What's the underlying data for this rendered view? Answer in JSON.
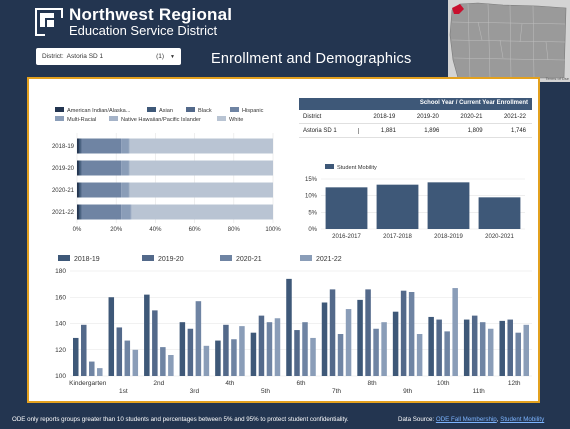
{
  "brand": {
    "line1": "Northwest Regional",
    "line2": "Education Service District"
  },
  "district_filter": {
    "label": "District:",
    "value": "Astoria SD 1",
    "count": "(1)"
  },
  "page_title": "Enrollment and Demographics",
  "map": {
    "terms": "Terms of Use"
  },
  "enrollment_table": {
    "title": "School Year / Current Year Enrollment",
    "columns": [
      "District",
      "2018-19",
      "2019-20",
      "2020-21",
      "2021-22"
    ],
    "rows": [
      [
        "Astoria SD 1",
        "1,881",
        "1,896",
        "1,809",
        "1,746"
      ]
    ]
  },
  "colors": {
    "header": "#3e5878",
    "accent": "#e3a11f",
    "background": "#233550"
  },
  "footer": {
    "note": "ODE only reports groups greater than 10 students and percentages between 5% and 95% to protect student confidentiality.",
    "source_label": "Data Source:",
    "source_link1": "ODE Fall Membership",
    "sep": ",",
    "source_link2": "Student Mobility"
  },
  "chart_data": [
    {
      "type": "bar",
      "orientation": "horizontal",
      "stacked": true,
      "title": "",
      "categories": [
        "2018-19",
        "2019-20",
        "2020-21",
        "2021-22"
      ],
      "series": [
        {
          "name": "American Indian/Alaska...",
          "color": "#233550",
          "values": [
            1,
            1,
            1,
            1
          ]
        },
        {
          "name": "Asian",
          "color": "#3e5878",
          "values": [
            1,
            1,
            1,
            1
          ]
        },
        {
          "name": "Black",
          "color": "#53698a",
          "values": [
            0.5,
            0.5,
            0.5,
            0.5
          ]
        },
        {
          "name": "Hispanic",
          "color": "#6f84a3",
          "values": [
            20,
            20,
            20,
            20
          ]
        },
        {
          "name": "Multi-Racial",
          "color": "#8a9db8",
          "values": [
            4,
            4,
            4,
            5
          ]
        },
        {
          "name": "Native Hawaiian/Pacific Islander",
          "color": "#a5b3c8",
          "values": [
            0.5,
            0.5,
            0.5,
            0.5
          ]
        },
        {
          "name": "White",
          "color": "#b9c4d3",
          "values": [
            73,
            73,
            73,
            72
          ]
        }
      ],
      "x_ticks": [
        "0%",
        "20%",
        "40%",
        "60%",
        "80%",
        "100%"
      ],
      "xlim": [
        0,
        100
      ],
      "legend": "top"
    },
    {
      "type": "bar",
      "title": "",
      "categories": [
        "2016-2017",
        "2017-2018",
        "2018-2019",
        "2020-2021"
      ],
      "series": [
        {
          "name": "Student Mobility",
          "color": "#3e5878",
          "values": [
            12.5,
            13.3,
            14,
            9.5
          ]
        }
      ],
      "y_ticks": [
        "0%",
        "5%",
        "10%",
        "15%"
      ],
      "ylim": [
        0,
        15
      ],
      "legend": "top-left"
    },
    {
      "type": "bar",
      "title": "",
      "categories": [
        "Kindergarten",
        "1st",
        "2nd",
        "3rd",
        "4th",
        "5th",
        "6th",
        "7th",
        "8th",
        "9th",
        "10th",
        "11th",
        "12th"
      ],
      "series": [
        {
          "name": "2018-19",
          "color": "#3e5878",
          "values": [
            129,
            160,
            162,
            141,
            127,
            133,
            174,
            156,
            158,
            149,
            145,
            143,
            142
          ]
        },
        {
          "name": "2019-20",
          "color": "#53698a",
          "values": [
            139,
            137,
            150,
            136,
            139,
            146,
            135,
            166,
            166,
            165,
            143,
            146,
            143
          ]
        },
        {
          "name": "2020-21",
          "color": "#6f84a3",
          "values": [
            111,
            127,
            122,
            157,
            128,
            141,
            141,
            132,
            136,
            164,
            134,
            141,
            133
          ]
        },
        {
          "name": "2021-22",
          "color": "#8a9db8",
          "values": [
            106,
            120,
            116,
            123,
            138,
            144,
            129,
            151,
            141,
            132,
            167,
            136,
            139
          ]
        }
      ],
      "y_ticks": [
        "100",
        "120",
        "140",
        "160",
        "180"
      ],
      "ylim": [
        100,
        180
      ],
      "legend": "top-left"
    }
  ]
}
